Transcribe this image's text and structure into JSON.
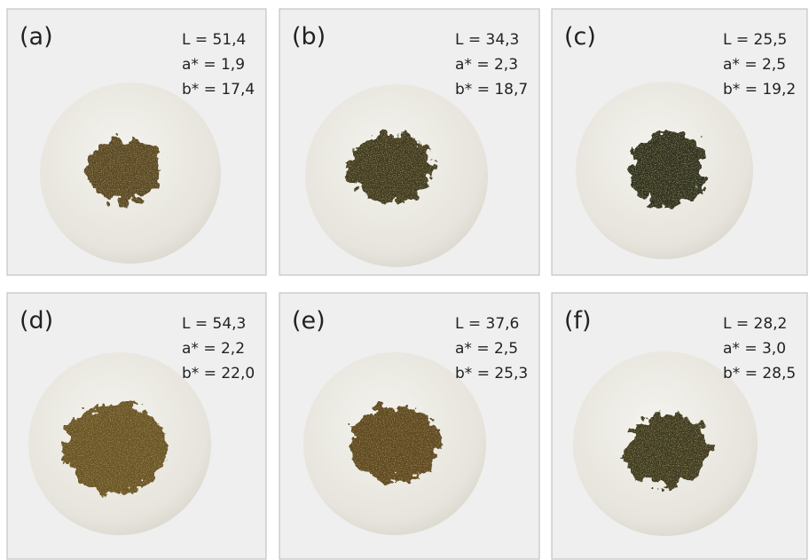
{
  "panels": [
    {
      "label": "(a)",
      "lines": [
        "L = 51,4",
        "a* = 1,9",
        "b* = 17,4"
      ]
    },
    {
      "label": "(b)",
      "lines": [
        "L = 34,3",
        "a* = 2,3",
        "b* = 18,7"
      ]
    },
    {
      "label": "(c)",
      "lines": [
        "L = 25,5",
        "a* = 2,5",
        "b* = 19,2"
      ]
    },
    {
      "label": "(d)",
      "lines": [
        "L = 54,3",
        "a* = 2,2",
        "b* = 22,0"
      ]
    },
    {
      "label": "(e)",
      "lines": [
        "L = 37,6",
        "a* = 2,5",
        "b* = 25,3"
      ]
    },
    {
      "label": "(f)",
      "lines": [
        "L = 28,2",
        "a* = 3,0",
        "b* = 28,5"
      ]
    }
  ]
}
